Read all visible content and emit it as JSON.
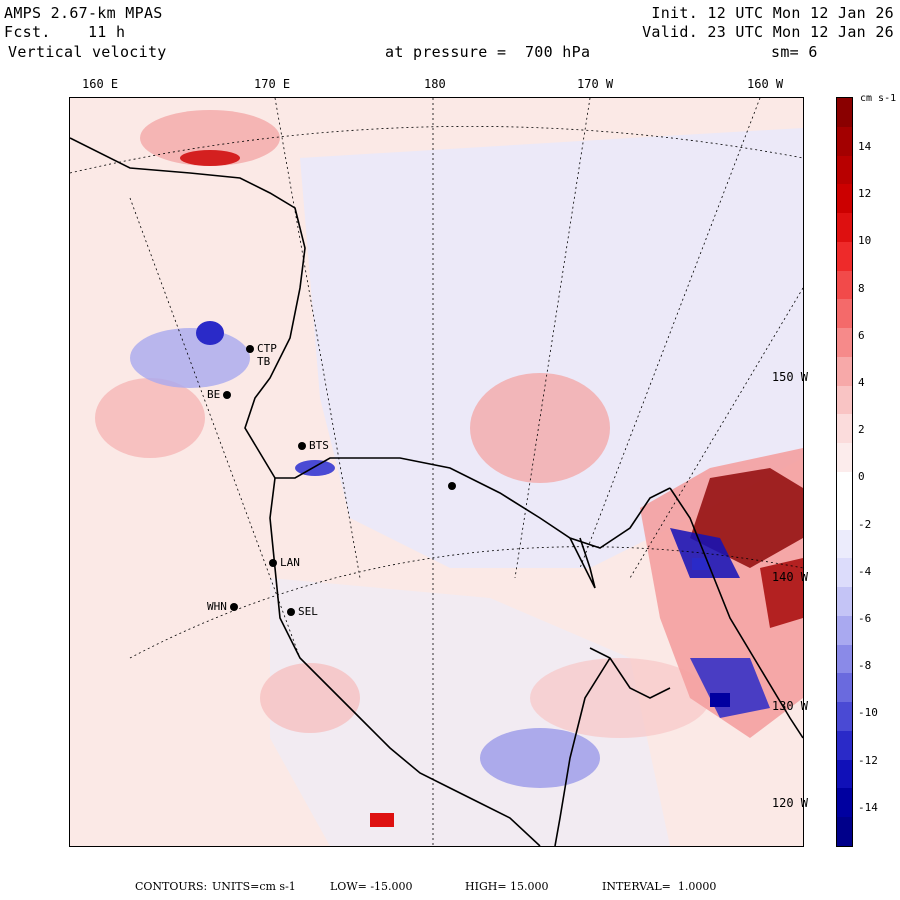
{
  "header": {
    "model": "AMPS 2.67-km MPAS",
    "forecast": "Fcst.    11 h",
    "field": "Vertical velocity",
    "init": "Init. 12 UTC Mon 12 Jan 26",
    "valid": "Valid. 23 UTC Mon 12 Jan 26",
    "level": "at pressure =  700 hPa",
    "smoothing": "sm= 6"
  },
  "longitude_labels": [
    "160 E",
    "170 E",
    "180",
    "170 W",
    "160 W"
  ],
  "latitude_labels": [
    "150 W",
    "140 W",
    "130 W",
    "120 W"
  ],
  "stations": [
    "CTP",
    "TB",
    "BE",
    "BTS",
    "LAN",
    "WHN",
    "SEL"
  ],
  "colorbar": {
    "units": "cm s-1",
    "tick_labels": [
      "14",
      "12",
      "10",
      "8",
      "6",
      "4",
      "2",
      "0",
      "-2",
      "-4",
      "-6",
      "-8",
      "-10",
      "-12",
      "-14"
    ],
    "colors": [
      "#8a0000",
      "#a30000",
      "#b80000",
      "#cc0000",
      "#de1010",
      "#ee2a2a",
      "#f24a4a",
      "#f46a6a",
      "#f68a8a",
      "#f7a9a9",
      "#f9c4c4",
      "#fbdcdc",
      "#fcecec",
      "#ffffff",
      "#ffffff",
      "#ececfc",
      "#dcdcfb",
      "#c4c4f6",
      "#a9a9f0",
      "#8a8ae8",
      "#6a6ade",
      "#4a4ad4",
      "#2a2ac8",
      "#1010b8",
      "#0000a0",
      "#00008a"
    ]
  },
  "footer": {
    "contours_label": "CONTOURS:",
    "units": "UNITS=cm s-1",
    "low": "LOW= -15.000",
    "high": "HIGH= 15.000",
    "interval": "INTERVAL=  1.0000"
  }
}
